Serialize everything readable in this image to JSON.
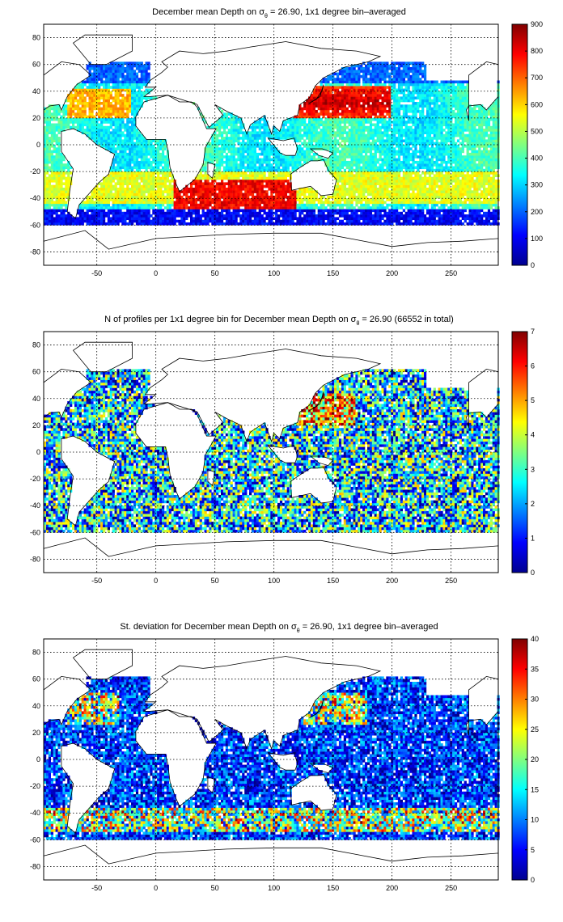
{
  "chart_data": [
    {
      "type": "heatmap",
      "title": "December mean Depth on σθ = 26.90, 1x1 degree bin–averaged",
      "title_parts": [
        "December mean Depth on σ",
        "θ",
        " = 26.90, 1x1 degree bin–averaged"
      ],
      "xlim": [
        -95,
        290
      ],
      "ylim": [
        -90,
        90
      ],
      "xticks": [
        -50,
        0,
        50,
        100,
        150,
        200,
        250
      ],
      "yticks": [
        80,
        60,
        40,
        20,
        0,
        -20,
        -40,
        -60,
        -80
      ],
      "colorbar": {
        "range": [
          0,
          900
        ],
        "ticks": [
          0,
          100,
          200,
          300,
          400,
          500,
          600,
          700,
          800,
          900
        ]
      },
      "colormap": "jet",
      "grid": true,
      "background_land": "#ffffff",
      "field": "mean_depth"
    },
    {
      "type": "heatmap",
      "title": "N of profiles per 1x1 degree bin for December mean Depth on σθ = 26.90 (66552 in total)",
      "title_parts": [
        "N of profiles per 1x1 degree bin for December mean Depth on σ",
        "θ",
        " = 26.90 (66552 in total)"
      ],
      "xlim": [
        -95,
        290
      ],
      "ylim": [
        -90,
        90
      ],
      "xticks": [
        -50,
        0,
        50,
        100,
        150,
        200,
        250
      ],
      "yticks": [
        80,
        60,
        40,
        20,
        0,
        -20,
        -40,
        -60,
        -80
      ],
      "colorbar": {
        "range": [
          0,
          7
        ],
        "ticks": [
          0,
          1,
          2,
          3,
          4,
          5,
          6,
          7
        ]
      },
      "colormap": "jet",
      "grid": true,
      "field": "profile_count"
    },
    {
      "type": "heatmap",
      "title": "St. deviation for December mean Depth on σθ = 26.90, 1x1 degree bin–averaged",
      "title_parts": [
        "St. deviation for December mean Depth on σ",
        "θ",
        " = 26.90, 1x1 degree bin–averaged"
      ],
      "xlim": [
        -95,
        290
      ],
      "ylim": [
        -90,
        90
      ],
      "xticks": [
        -50,
        0,
        50,
        100,
        150,
        200,
        250
      ],
      "yticks": [
        80,
        60,
        40,
        20,
        0,
        -20,
        -40,
        -60,
        -80
      ],
      "colorbar": {
        "range": [
          0,
          40
        ],
        "ticks": [
          0,
          5,
          10,
          15,
          20,
          25,
          30,
          35,
          40
        ]
      },
      "colormap": "jet",
      "grid": true,
      "field": "std_deviation"
    }
  ]
}
